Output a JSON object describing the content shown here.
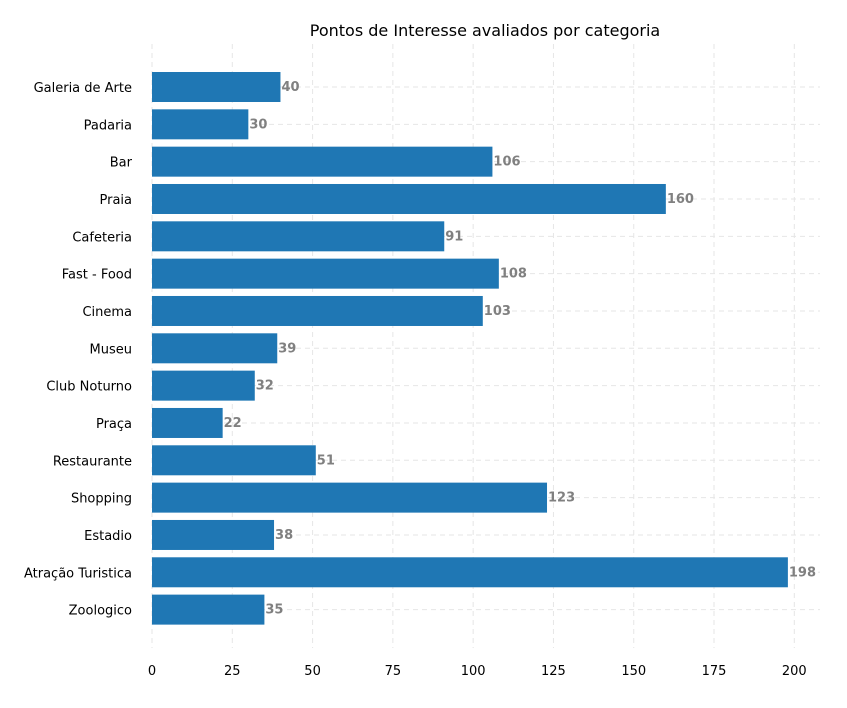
{
  "chart_data": {
    "type": "bar",
    "orientation": "horizontal",
    "title": "Pontos de Interesse avaliados por categoria",
    "xlabel": "",
    "ylabel": "",
    "categories": [
      "Galeria de Arte",
      "Padaria",
      "Bar",
      "Praia",
      "Cafeteria",
      "Fast - Food",
      "Cinema",
      "Museu",
      "Club Noturno",
      "Praça",
      "Restaurante",
      "Shopping",
      "Estadio",
      "Atração Turistica",
      "Zoologico"
    ],
    "values": [
      40,
      30,
      106,
      160,
      91,
      108,
      103,
      39,
      32,
      22,
      51,
      123,
      38,
      198,
      35
    ],
    "xlim": [
      0,
      208
    ],
    "xticks": [
      "0",
      "25",
      "50",
      "75",
      "100",
      "125",
      "150",
      "175",
      "200"
    ],
    "grid": true,
    "legend": "none",
    "bar_color": "#1f77b4",
    "label_color": "#808080",
    "grid_color": "#e6e6e6"
  }
}
